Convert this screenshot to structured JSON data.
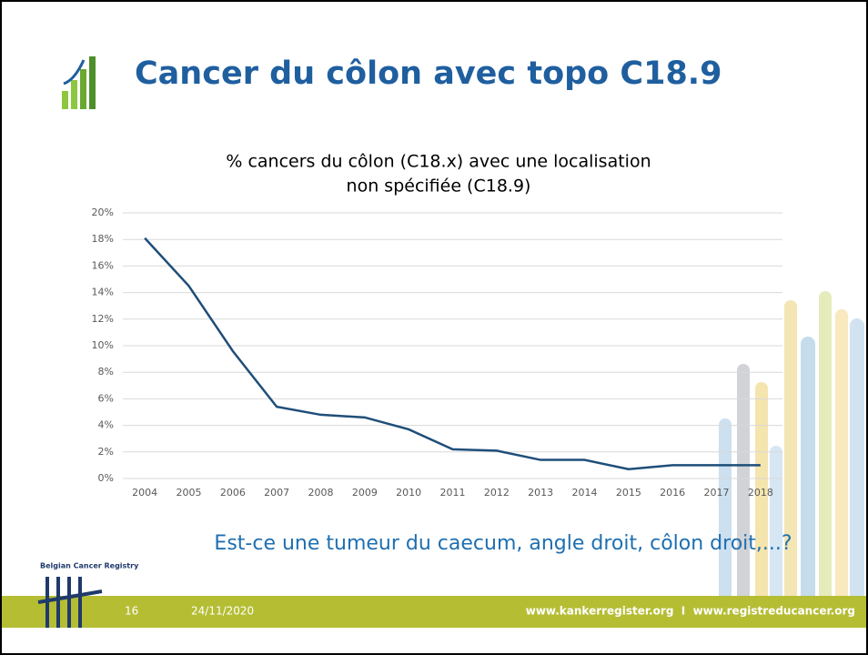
{
  "slide": {
    "title": "Cancer du côlon avec topo C18.9",
    "question": "Est-ce une tumeur du caecum, angle droit, côlon droit,...?",
    "logo_text": "Belgian Cancer Registry",
    "page_number": "16",
    "date": "24/11/2020",
    "websites": "www.kankerregister.org  I  www.registreducancer.org"
  },
  "chart_data": {
    "type": "line",
    "title_lines": [
      "% cancers du côlon (C18.x) avec une localisation",
      "non spécifiée (C18.9)"
    ],
    "categories": [
      "2004",
      "2005",
      "2006",
      "2007",
      "2008",
      "2009",
      "2010",
      "2011",
      "2012",
      "2013",
      "2014",
      "2015",
      "2016",
      "2017",
      "2018"
    ],
    "values": [
      18.1,
      14.5,
      9.6,
      5.4,
      4.8,
      4.6,
      3.7,
      2.2,
      2.1,
      1.4,
      1.4,
      0.7,
      1.0,
      1.0,
      1.0
    ],
    "color": "#1f4e79",
    "ylim": [
      0,
      20
    ],
    "yticks": [
      {
        "value": 0,
        "label": "0%"
      },
      {
        "value": 2,
        "label": "2%"
      },
      {
        "value": 4,
        "label": "4%"
      },
      {
        "value": 6,
        "label": "6%"
      },
      {
        "value": 8,
        "label": "8%"
      },
      {
        "value": 10,
        "label": "10%"
      },
      {
        "value": 12,
        "label": "12%"
      },
      {
        "value": 14,
        "label": "14%"
      },
      {
        "value": 16,
        "label": "16%"
      },
      {
        "value": 18,
        "label": "18%"
      },
      {
        "value": 20,
        "label": "20%"
      }
    ],
    "grid": true
  }
}
